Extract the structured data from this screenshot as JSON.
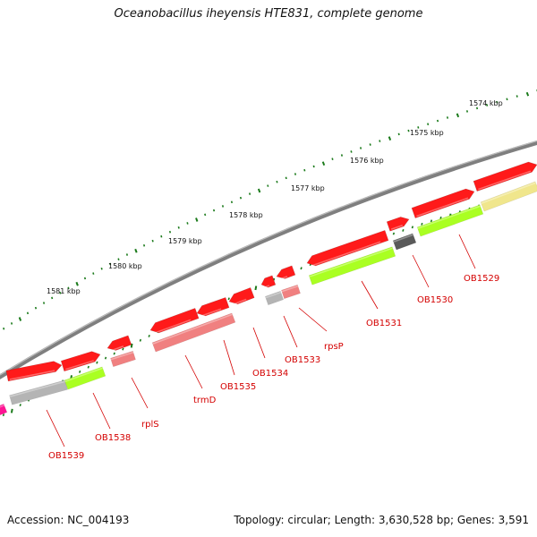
{
  "title": "Oceanobacillus iheyensis HTE831, complete genome",
  "footer": {
    "accession": "Accession: NC_004193",
    "summary": "Topology: circular; Length: 3,630,528 bp; Genes: 3,591"
  },
  "colors": {
    "backbone": "#7f7f7f",
    "tick": "#1a7a1a",
    "label": "#d40000",
    "gene_red": "#ff1a1a",
    "gene_pink": "#f08080",
    "gene_green": "#aaff22",
    "gene_gray": "#b4b4b4",
    "gene_dark": "#5a5a5a",
    "gene_khaki": "#f0e68c",
    "gene_magenta": "#ff1493"
  },
  "kbp_labels": [
    "1574 kbp",
    "1575 kbp",
    "1576 kbp",
    "1577 kbp",
    "1578 kbp",
    "1579 kbp",
    "1580 kbp",
    "1581 kbp"
  ],
  "gene_labels": [
    "OB1529",
    "OB1530",
    "OB1531",
    "rpsP",
    "OB1533",
    "OB1534",
    "OB1535",
    "trmD",
    "rplS",
    "OB1538",
    "OB1539"
  ]
}
